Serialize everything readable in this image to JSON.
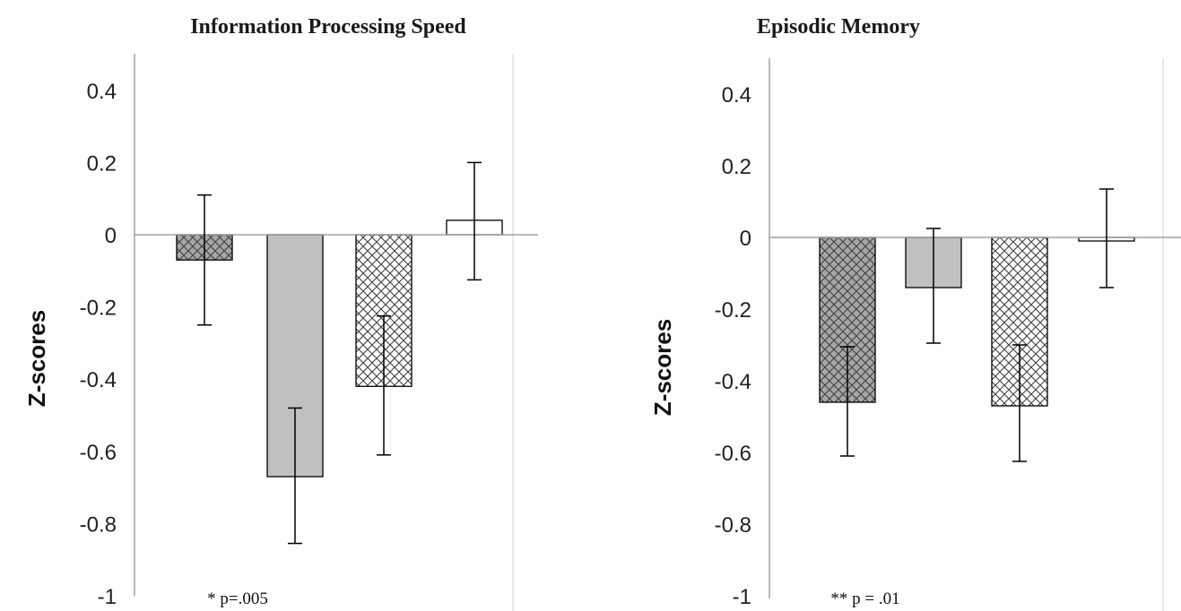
{
  "chart_data": [
    {
      "type": "bar",
      "title": "Information Processing Speed",
      "ylabel": "Z-scores",
      "ylim": [
        -1,
        0.5
      ],
      "yticks": [
        "0.4",
        "0.2",
        "0",
        "-0.2",
        "-0.4",
        "-0.6",
        "-0.8",
        "-1"
      ],
      "ytick_values": [
        0.4,
        0.2,
        0,
        -0.2,
        -0.4,
        -0.6,
        -0.8,
        -1
      ],
      "annotation": "* p=.005",
      "bars": [
        {
          "value": -0.07,
          "err_low": -0.25,
          "err_high": 0.11,
          "pattern": "crosshatch-dark"
        },
        {
          "value": -0.67,
          "err_low": -0.855,
          "err_high": -0.48,
          "pattern": "solid-gray"
        },
        {
          "value": -0.42,
          "err_low": -0.61,
          "err_high": -0.225,
          "pattern": "crosshatch-light"
        },
        {
          "value": 0.04,
          "err_low": -0.125,
          "err_high": 0.2,
          "pattern": "white"
        }
      ]
    },
    {
      "type": "bar",
      "title": "Episodic Memory",
      "ylabel": "Z-scores",
      "ylim": [
        -1,
        0.5
      ],
      "yticks": [
        "0.4",
        "0.2",
        "0",
        "-0.2",
        "-0.4",
        "-0.6",
        "-0.8",
        "-1"
      ],
      "ytick_values": [
        0.4,
        0.2,
        0,
        -0.2,
        -0.4,
        -0.6,
        -0.8,
        -1
      ],
      "annotation": "** p = .01",
      "bars": [
        {
          "value": -0.46,
          "err_low": -0.61,
          "err_high": -0.305,
          "pattern": "crosshatch-dark"
        },
        {
          "value": -0.14,
          "err_low": -0.295,
          "err_high": 0.025,
          "pattern": "solid-gray"
        },
        {
          "value": -0.47,
          "err_low": -0.625,
          "err_high": -0.3,
          "pattern": "crosshatch-light"
        },
        {
          "value": -0.01,
          "err_low": -0.14,
          "err_high": 0.135,
          "pattern": "white"
        }
      ]
    }
  ],
  "colors": {
    "bar_gray": "#c0c0c0",
    "hatch_dark_bg": "#a6a6a6",
    "hatch_line": "#404040",
    "axis": "#a0a0a0",
    "stroke": "#000000"
  }
}
